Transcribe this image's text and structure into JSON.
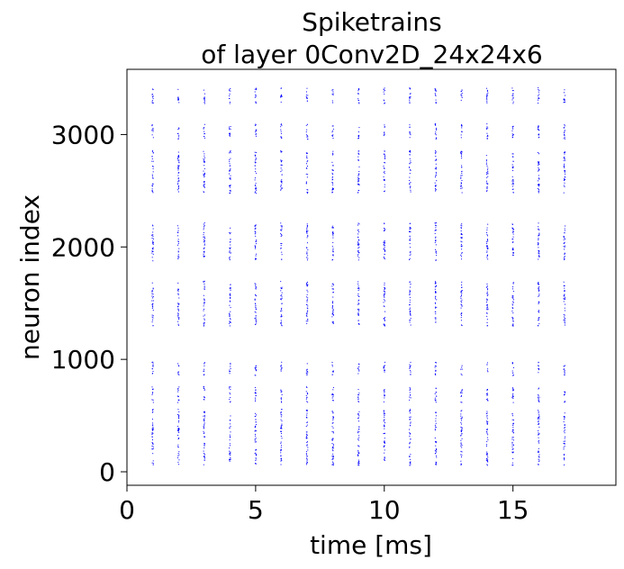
{
  "chart_data": {
    "type": "scatter",
    "title": "Spiketrains\nof layer 0Conv2D_24x24x6",
    "title_lines": [
      "Spiketrains",
      "of layer 0Conv2D_24x24x6"
    ],
    "xlabel": "time [ms]",
    "ylabel": "neuron index",
    "xlim": [
      0,
      19
    ],
    "ylim": [
      -120,
      3580
    ],
    "xticks": [
      0,
      5,
      10,
      15
    ],
    "xtick_labels": [
      "0",
      "5",
      "10",
      "15"
    ],
    "yticks": [
      0,
      1000,
      2000,
      3000
    ],
    "ytick_labels": [
      "0",
      "1000",
      "2000",
      "3000"
    ],
    "grid": false,
    "legend": "none",
    "marker_color": "#0000ff",
    "spike_times_ms": [
      1,
      2,
      3,
      4,
      5,
      6,
      7,
      8,
      9,
      10,
      11,
      12,
      13,
      14,
      15,
      16,
      17
    ],
    "active_neuron_bands": [
      [
        60,
        560
      ],
      [
        620,
        760
      ],
      [
        860,
        980
      ],
      [
        1300,
        1700
      ],
      [
        1880,
        2220
      ],
      [
        2480,
        2860
      ],
      [
        2960,
        3100
      ],
      [
        3280,
        3420
      ]
    ]
  }
}
